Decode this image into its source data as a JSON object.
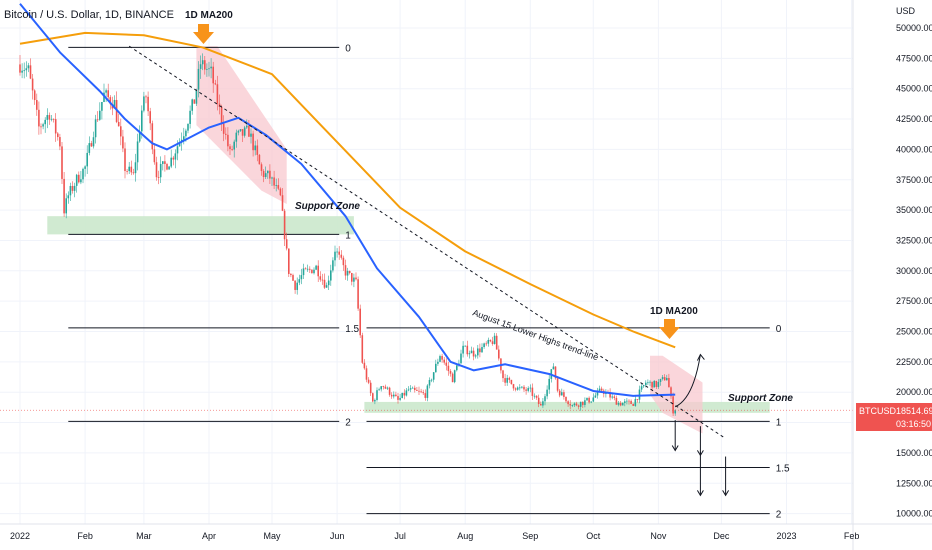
{
  "title": "Bitcoin / U.S. Dollar, 1D, BINANCE",
  "currency": "USD",
  "colors": {
    "up": "#26a69a",
    "down": "#ef5350",
    "ma50": "#2962ff",
    "ma200": "#f59e0b",
    "support": "#c8e6c9",
    "channel": "#f8c8cf",
    "price_tag": "#ef5350"
  },
  "price_tag": {
    "symbol": "BTCUSD",
    "price": "18514.69",
    "countdown": "03:16:50"
  },
  "annotations": {
    "ma200_top": "1D MA200",
    "ma200_right": "1D MA200",
    "support_top": "Support Zone",
    "support_bottom": "Support Zone",
    "trendline": "August 15 Lower Highs trend-line"
  },
  "fib_labels": {
    "top": [
      "0",
      "1",
      "1.5",
      "2"
    ],
    "bottom": [
      "0",
      "1",
      "1.5",
      "2"
    ]
  },
  "chart_data": {
    "type": "candlestick",
    "title": "Bitcoin / U.S. Dollar, 1D, BINANCE",
    "x_ticks": [
      "2022",
      "Feb",
      "Mar",
      "Apr",
      "May",
      "Jun",
      "Jul",
      "Aug",
      "Sep",
      "Oct",
      "Nov",
      "Dec",
      "2023",
      "Feb"
    ],
    "x_tick_dates": [
      "2022-01-01",
      "2022-02-01",
      "2022-03-01",
      "2022-04-01",
      "2022-05-01",
      "2022-06-01",
      "2022-07-01",
      "2022-08-01",
      "2022-09-01",
      "2022-10-01",
      "2022-11-01",
      "2022-12-01",
      "2023-01-01",
      "2023-02-01"
    ],
    "y_ticks": [
      "50000.00",
      "47500.00",
      "45000.00",
      "42500.00",
      "40000.00",
      "37500.00",
      "35000.00",
      "32500.00",
      "30000.00",
      "27500.00",
      "25000.00",
      "22500.00",
      "20000.00",
      "17500.00",
      "15000.00",
      "12500.00",
      "10000.00"
    ],
    "ylim": [
      9000,
      52500
    ],
    "price_path": [
      [
        "2022-01-01",
        47000
      ],
      [
        "2022-01-05",
        46500
      ],
      [
        "2022-01-10",
        41800
      ],
      [
        "2022-01-15",
        43000
      ],
      [
        "2022-01-20",
        40500
      ],
      [
        "2022-01-22",
        35000
      ],
      [
        "2022-01-24",
        36200
      ],
      [
        "2022-01-28",
        37500
      ],
      [
        "2022-02-01",
        38500
      ],
      [
        "2022-02-05",
        41600
      ],
      [
        "2022-02-10",
        44500
      ],
      [
        "2022-02-15",
        43800
      ],
      [
        "2022-02-20",
        38500
      ],
      [
        "2022-02-24",
        37800
      ],
      [
        "2022-02-28",
        43200
      ],
      [
        "2022-03-02",
        44400
      ],
      [
        "2022-03-07",
        38000
      ],
      [
        "2022-03-14",
        39200
      ],
      [
        "2022-03-20",
        41500
      ],
      [
        "2022-03-25",
        44000
      ],
      [
        "2022-03-28",
        47100
      ],
      [
        "2022-04-02",
        46300
      ],
      [
        "2022-04-06",
        43200
      ],
      [
        "2022-04-11",
        39600
      ],
      [
        "2022-04-14",
        41000
      ],
      [
        "2022-04-20",
        41500
      ],
      [
        "2022-04-26",
        38100
      ],
      [
        "2022-04-30",
        37700
      ],
      [
        "2022-05-05",
        36000
      ],
      [
        "2022-05-09",
        30000
      ],
      [
        "2022-05-12",
        28800
      ],
      [
        "2022-05-16",
        29800
      ],
      [
        "2022-05-22",
        30300
      ],
      [
        "2022-05-27",
        28700
      ],
      [
        "2022-05-31",
        31800
      ],
      [
        "2022-06-05",
        29900
      ],
      [
        "2022-06-10",
        29000
      ],
      [
        "2022-06-13",
        22500
      ],
      [
        "2022-06-18",
        19200
      ],
      [
        "2022-06-22",
        20700
      ],
      [
        "2022-06-30",
        19300
      ],
      [
        "2022-07-05",
        20200
      ],
      [
        "2022-07-13",
        19800
      ],
      [
        "2022-07-20",
        23100
      ],
      [
        "2022-07-26",
        21100
      ],
      [
        "2022-07-31",
        23600
      ],
      [
        "2022-08-05",
        23200
      ],
      [
        "2022-08-15",
        24300
      ],
      [
        "2022-08-19",
        21200
      ],
      [
        "2022-08-26",
        20300
      ],
      [
        "2022-09-01",
        20100
      ],
      [
        "2022-09-06",
        18800
      ],
      [
        "2022-09-12",
        22200
      ],
      [
        "2022-09-14",
        20200
      ],
      [
        "2022-09-21",
        18900
      ],
      [
        "2022-09-30",
        19400
      ],
      [
        "2022-10-05",
        20200
      ],
      [
        "2022-10-13",
        19100
      ],
      [
        "2022-10-20",
        19100
      ],
      [
        "2022-10-26",
        20800
      ],
      [
        "2022-10-31",
        20600
      ],
      [
        "2022-11-05",
        21300
      ],
      [
        "2022-11-08",
        18500
      ],
      [
        "2022-11-09",
        18515
      ]
    ],
    "candle_dates": [
      "2022-01-01",
      "2022-11-09"
    ],
    "series": [
      {
        "name": "1D MA200",
        "points": [
          [
            "2022-01-01",
            48700
          ],
          [
            "2022-02-01",
            49600
          ],
          [
            "2022-03-01",
            49400
          ],
          [
            "2022-03-29",
            48400
          ],
          [
            "2022-05-01",
            46200
          ],
          [
            "2022-06-01",
            40600
          ],
          [
            "2022-07-01",
            35200
          ],
          [
            "2022-08-01",
            31600
          ],
          [
            "2022-09-01",
            28900
          ],
          [
            "2022-10-01",
            26400
          ],
          [
            "2022-10-20",
            25000
          ],
          [
            "2022-11-09",
            23700
          ]
        ]
      },
      {
        "points": [
          [
            "2022-01-01",
            52000
          ],
          [
            "2022-01-20",
            48000
          ],
          [
            "2022-02-08",
            44800
          ],
          [
            "2022-02-20",
            42500
          ],
          [
            "2022-03-05",
            40500
          ],
          [
            "2022-03-12",
            40000
          ],
          [
            "2022-04-01",
            41800
          ],
          [
            "2022-04-15",
            42600
          ],
          [
            "2022-04-28",
            41200
          ],
          [
            "2022-05-15",
            38800
          ],
          [
            "2022-06-05",
            34500
          ],
          [
            "2022-06-20",
            30200
          ],
          [
            "2022-07-10",
            26200
          ],
          [
            "2022-07-25",
            22500
          ],
          [
            "2022-08-05",
            21800
          ],
          [
            "2022-08-20",
            22300
          ],
          [
            "2022-09-10",
            21500
          ],
          [
            "2022-10-01",
            20100
          ],
          [
            "2022-10-20",
            19700
          ],
          [
            "2022-11-09",
            19800
          ]
        ]
      }
    ],
    "support_zones": [
      {
        "date_from": "2022-01-14",
        "date_to": "2022-06-09",
        "low": 33000,
        "high": 34500
      },
      {
        "date_from": "2022-06-14",
        "date_to": "2022-12-24",
        "low": 18300,
        "high": 19200
      }
    ],
    "fib_top": {
      "date_from": "2022-01-24",
      "date_to": "2022-06-02",
      "levels": [
        {
          "label": "0",
          "price": 48400
        },
        {
          "label": "1",
          "price": 33000
        },
        {
          "label": "1.5",
          "price": 25300
        },
        {
          "label": "2",
          "price": 17600
        }
      ]
    },
    "fib_bottom": {
      "date_from": "2022-06-15",
      "date_to": "2022-12-24",
      "levels": [
        {
          "label": "0",
          "price": 25300
        },
        {
          "label": "1",
          "price": 17600
        },
        {
          "label": "1.5",
          "price": 13800
        },
        {
          "label": "2",
          "price": 10000
        }
      ]
    },
    "trendline": [
      [
        "2022-02-22",
        48500
      ],
      [
        "2022-12-02",
        16300
      ]
    ],
    "projection_up": [
      [
        "2022-11-09",
        18800
      ],
      [
        "2022-11-21",
        23100
      ]
    ],
    "projection_down_arrows": [
      {
        "date": "2022-11-09",
        "from": 17700,
        "to": 15200
      },
      {
        "date": "2022-11-21",
        "from": 17200,
        "to": 14800
      },
      {
        "date": "2022-11-21",
        "from": 15100,
        "to": 11500
      },
      {
        "date": "2022-12-03",
        "from": 14700,
        "to": 11500
      }
    ]
  }
}
